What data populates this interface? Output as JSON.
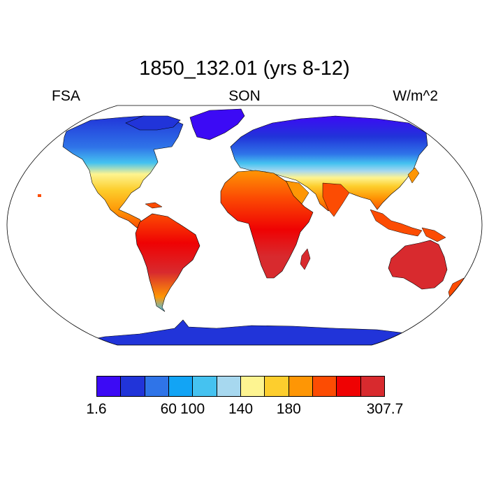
{
  "title": "1850_132.01 (yrs 8-12)",
  "subtitle_left": "FSA",
  "subtitle_center": "SON",
  "subtitle_right": "W/m^2",
  "colorbar": {
    "colors": [
      "#3c0af5",
      "#2134d9",
      "#2f74e8",
      "#12a4f5",
      "#45c2f0",
      "#a7d8ef",
      "#fdf491",
      "#fdce2d",
      "#fe9605",
      "#fc4c03",
      "#ef0203",
      "#d82a2e"
    ],
    "labels": [
      {
        "text": "1.6",
        "index": 0
      },
      {
        "text": "60",
        "index": 3
      },
      {
        "text": "100",
        "index": 4
      },
      {
        "text": "140",
        "index": 6
      },
      {
        "text": "180",
        "index": 8
      },
      {
        "text": "307.7",
        "index": 12
      }
    ]
  },
  "map_regions": [
    {
      "name": "greenland",
      "value_class": 0
    },
    {
      "name": "north-america-arctic",
      "value_class": 1
    },
    {
      "name": "north-america",
      "value_class": 7
    },
    {
      "name": "south-america",
      "value_class": 10
    },
    {
      "name": "eurasia-north",
      "value_class": 2
    },
    {
      "name": "eurasia-south",
      "value_class": 8
    },
    {
      "name": "africa",
      "value_class": 9
    },
    {
      "name": "australia",
      "value_class": 11
    },
    {
      "name": "antarctica",
      "value_class": 1
    }
  ]
}
